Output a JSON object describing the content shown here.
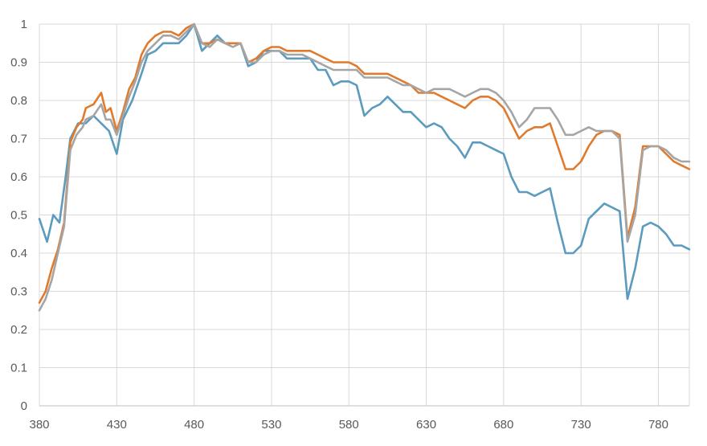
{
  "chart_data": {
    "type": "line",
    "title": "",
    "xlabel": "",
    "ylabel": "",
    "xlim": [
      380,
      800
    ],
    "ylim": [
      0,
      1
    ],
    "x_ticks": [
      "380",
      "430",
      "480",
      "530",
      "580",
      "630",
      "680",
      "730",
      "780"
    ],
    "y_ticks": [
      "0",
      "0.1",
      "0.2",
      "0.3",
      "0.4",
      "0.5",
      "0.6",
      "0.7",
      "0.8",
      "0.9",
      "1"
    ],
    "grid": true,
    "legend": "none",
    "series": [
      {
        "color": "#5b9bbe",
        "points": [
          [
            380,
            0.49
          ],
          [
            385,
            0.43
          ],
          [
            389,
            0.5
          ],
          [
            393,
            0.48
          ],
          [
            397,
            0.6
          ],
          [
            400,
            0.7
          ],
          [
            405,
            0.74
          ],
          [
            410,
            0.74
          ],
          [
            415,
            0.76
          ],
          [
            420,
            0.74
          ],
          [
            425,
            0.72
          ],
          [
            430,
            0.66
          ],
          [
            434,
            0.75
          ],
          [
            440,
            0.8
          ],
          [
            446,
            0.87
          ],
          [
            450,
            0.92
          ],
          [
            455,
            0.93
          ],
          [
            460,
            0.95
          ],
          [
            465,
            0.95
          ],
          [
            470,
            0.95
          ],
          [
            475,
            0.97
          ],
          [
            480,
            1.0
          ],
          [
            485,
            0.93
          ],
          [
            490,
            0.95
          ],
          [
            495,
            0.97
          ],
          [
            500,
            0.95
          ],
          [
            505,
            0.95
          ],
          [
            510,
            0.95
          ],
          [
            515,
            0.89
          ],
          [
            520,
            0.9
          ],
          [
            525,
            0.93
          ],
          [
            530,
            0.93
          ],
          [
            535,
            0.93
          ],
          [
            540,
            0.91
          ],
          [
            545,
            0.91
          ],
          [
            550,
            0.91
          ],
          [
            555,
            0.91
          ],
          [
            560,
            0.88
          ],
          [
            565,
            0.88
          ],
          [
            570,
            0.84
          ],
          [
            575,
            0.85
          ],
          [
            580,
            0.85
          ],
          [
            585,
            0.84
          ],
          [
            590,
            0.76
          ],
          [
            595,
            0.78
          ],
          [
            600,
            0.79
          ],
          [
            605,
            0.81
          ],
          [
            610,
            0.79
          ],
          [
            615,
            0.77
          ],
          [
            620,
            0.77
          ],
          [
            625,
            0.75
          ],
          [
            630,
            0.73
          ],
          [
            635,
            0.74
          ],
          [
            640,
            0.73
          ],
          [
            645,
            0.7
          ],
          [
            650,
            0.68
          ],
          [
            655,
            0.65
          ],
          [
            660,
            0.69
          ],
          [
            665,
            0.69
          ],
          [
            670,
            0.68
          ],
          [
            675,
            0.67
          ],
          [
            680,
            0.66
          ],
          [
            685,
            0.6
          ],
          [
            690,
            0.56
          ],
          [
            695,
            0.56
          ],
          [
            700,
            0.55
          ],
          [
            705,
            0.56
          ],
          [
            710,
            0.57
          ],
          [
            715,
            0.48
          ],
          [
            720,
            0.4
          ],
          [
            725,
            0.4
          ],
          [
            730,
            0.42
          ],
          [
            735,
            0.49
          ],
          [
            740,
            0.51
          ],
          [
            745,
            0.53
          ],
          [
            750,
            0.52
          ],
          [
            755,
            0.51
          ],
          [
            760,
            0.28
          ],
          [
            765,
            0.36
          ],
          [
            770,
            0.47
          ],
          [
            775,
            0.48
          ],
          [
            780,
            0.47
          ],
          [
            785,
            0.45
          ],
          [
            790,
            0.42
          ],
          [
            795,
            0.42
          ],
          [
            800,
            0.41
          ]
        ]
      },
      {
        "color": "#e07b2e",
        "points": [
          [
            380,
            0.27
          ],
          [
            384,
            0.3
          ],
          [
            388,
            0.36
          ],
          [
            392,
            0.41
          ],
          [
            396,
            0.48
          ],
          [
            400,
            0.69
          ],
          [
            404,
            0.73
          ],
          [
            408,
            0.75
          ],
          [
            410,
            0.78
          ],
          [
            415,
            0.79
          ],
          [
            420,
            0.82
          ],
          [
            423,
            0.77
          ],
          [
            426,
            0.78
          ],
          [
            430,
            0.72
          ],
          [
            434,
            0.77
          ],
          [
            438,
            0.83
          ],
          [
            442,
            0.86
          ],
          [
            446,
            0.92
          ],
          [
            450,
            0.95
          ],
          [
            455,
            0.97
          ],
          [
            460,
            0.98
          ],
          [
            465,
            0.98
          ],
          [
            470,
            0.97
          ],
          [
            475,
            0.99
          ],
          [
            480,
            1.0
          ],
          [
            485,
            0.95
          ],
          [
            490,
            0.95
          ],
          [
            495,
            0.96
          ],
          [
            500,
            0.95
          ],
          [
            505,
            0.95
          ],
          [
            510,
            0.95
          ],
          [
            515,
            0.9
          ],
          [
            520,
            0.91
          ],
          [
            525,
            0.93
          ],
          [
            530,
            0.94
          ],
          [
            535,
            0.94
          ],
          [
            540,
            0.93
          ],
          [
            545,
            0.93
          ],
          [
            550,
            0.93
          ],
          [
            555,
            0.93
          ],
          [
            560,
            0.92
          ],
          [
            565,
            0.91
          ],
          [
            570,
            0.9
          ],
          [
            575,
            0.9
          ],
          [
            580,
            0.9
          ],
          [
            585,
            0.89
          ],
          [
            590,
            0.87
          ],
          [
            595,
            0.87
          ],
          [
            600,
            0.87
          ],
          [
            605,
            0.87
          ],
          [
            610,
            0.86
          ],
          [
            615,
            0.85
          ],
          [
            620,
            0.84
          ],
          [
            625,
            0.82
          ],
          [
            630,
            0.82
          ],
          [
            635,
            0.82
          ],
          [
            640,
            0.81
          ],
          [
            645,
            0.8
          ],
          [
            650,
            0.79
          ],
          [
            655,
            0.78
          ],
          [
            660,
            0.8
          ],
          [
            665,
            0.81
          ],
          [
            670,
            0.81
          ],
          [
            675,
            0.8
          ],
          [
            680,
            0.78
          ],
          [
            685,
            0.74
          ],
          [
            690,
            0.7
          ],
          [
            695,
            0.72
          ],
          [
            700,
            0.73
          ],
          [
            705,
            0.73
          ],
          [
            710,
            0.74
          ],
          [
            715,
            0.68
          ],
          [
            720,
            0.62
          ],
          [
            725,
            0.62
          ],
          [
            730,
            0.64
          ],
          [
            735,
            0.68
          ],
          [
            740,
            0.71
          ],
          [
            745,
            0.72
          ],
          [
            750,
            0.72
          ],
          [
            755,
            0.71
          ],
          [
            760,
            0.44
          ],
          [
            765,
            0.52
          ],
          [
            770,
            0.68
          ],
          [
            775,
            0.68
          ],
          [
            780,
            0.68
          ],
          [
            785,
            0.66
          ],
          [
            790,
            0.64
          ],
          [
            795,
            0.63
          ],
          [
            800,
            0.62
          ]
        ]
      },
      {
        "color": "#a5a5a5",
        "points": [
          [
            380,
            0.25
          ],
          [
            384,
            0.28
          ],
          [
            388,
            0.33
          ],
          [
            392,
            0.4
          ],
          [
            396,
            0.47
          ],
          [
            400,
            0.67
          ],
          [
            404,
            0.71
          ],
          [
            408,
            0.73
          ],
          [
            410,
            0.75
          ],
          [
            415,
            0.76
          ],
          [
            420,
            0.79
          ],
          [
            423,
            0.75
          ],
          [
            426,
            0.75
          ],
          [
            430,
            0.71
          ],
          [
            434,
            0.76
          ],
          [
            438,
            0.81
          ],
          [
            442,
            0.85
          ],
          [
            446,
            0.9
          ],
          [
            450,
            0.93
          ],
          [
            455,
            0.95
          ],
          [
            460,
            0.97
          ],
          [
            465,
            0.97
          ],
          [
            470,
            0.96
          ],
          [
            475,
            0.98
          ],
          [
            480,
            1.0
          ],
          [
            485,
            0.95
          ],
          [
            490,
            0.94
          ],
          [
            495,
            0.96
          ],
          [
            500,
            0.95
          ],
          [
            505,
            0.94
          ],
          [
            510,
            0.95
          ],
          [
            515,
            0.9
          ],
          [
            520,
            0.9
          ],
          [
            525,
            0.92
          ],
          [
            530,
            0.93
          ],
          [
            535,
            0.93
          ],
          [
            540,
            0.92
          ],
          [
            545,
            0.92
          ],
          [
            550,
            0.92
          ],
          [
            555,
            0.91
          ],
          [
            560,
            0.9
          ],
          [
            565,
            0.89
          ],
          [
            570,
            0.88
          ],
          [
            575,
            0.88
          ],
          [
            580,
            0.88
          ],
          [
            585,
            0.88
          ],
          [
            590,
            0.86
          ],
          [
            595,
            0.86
          ],
          [
            600,
            0.86
          ],
          [
            605,
            0.86
          ],
          [
            610,
            0.85
          ],
          [
            615,
            0.84
          ],
          [
            620,
            0.84
          ],
          [
            625,
            0.83
          ],
          [
            630,
            0.82
          ],
          [
            635,
            0.83
          ],
          [
            640,
            0.83
          ],
          [
            645,
            0.83
          ],
          [
            650,
            0.82
          ],
          [
            655,
            0.81
          ],
          [
            660,
            0.82
          ],
          [
            665,
            0.83
          ],
          [
            670,
            0.83
          ],
          [
            675,
            0.82
          ],
          [
            680,
            0.8
          ],
          [
            685,
            0.77
          ],
          [
            690,
            0.73
          ],
          [
            695,
            0.75
          ],
          [
            700,
            0.78
          ],
          [
            705,
            0.78
          ],
          [
            710,
            0.78
          ],
          [
            715,
            0.75
          ],
          [
            720,
            0.71
          ],
          [
            725,
            0.71
          ],
          [
            730,
            0.72
          ],
          [
            735,
            0.73
          ],
          [
            740,
            0.72
          ],
          [
            745,
            0.72
          ],
          [
            750,
            0.72
          ],
          [
            755,
            0.7
          ],
          [
            760,
            0.43
          ],
          [
            765,
            0.5
          ],
          [
            770,
            0.67
          ],
          [
            775,
            0.68
          ],
          [
            780,
            0.68
          ],
          [
            785,
            0.67
          ],
          [
            790,
            0.65
          ],
          [
            795,
            0.64
          ],
          [
            800,
            0.64
          ]
        ]
      }
    ]
  }
}
